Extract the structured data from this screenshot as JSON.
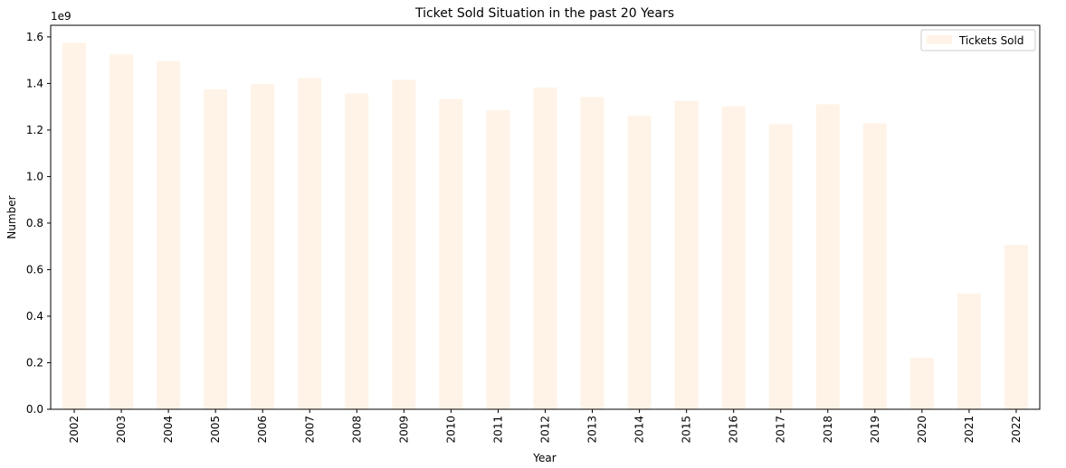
{
  "chart_data": {
    "type": "bar",
    "title": "Ticket Sold Situation in the past 20 Years",
    "xlabel": "Year",
    "ylabel": "Number",
    "y_offset_label": "1e9",
    "y_scale_factor": 1000000000,
    "ylim": [
      0,
      1.65
    ],
    "yticks": [
      "0.0",
      "0.2",
      "0.4",
      "0.6",
      "0.8",
      "1.0",
      "1.2",
      "1.4",
      "1.6"
    ],
    "ytick_values": [
      0,
      0.2,
      0.4,
      0.6,
      0.8,
      1.0,
      1.2,
      1.4,
      1.6
    ],
    "grid": false,
    "legend_position": "top-right",
    "categories": [
      "2002",
      "2003",
      "2004",
      "2005",
      "2006",
      "2007",
      "2008",
      "2009",
      "2010",
      "2011",
      "2012",
      "2013",
      "2014",
      "2015",
      "2016",
      "2017",
      "2018",
      "2019",
      "2020",
      "2021",
      "2022"
    ],
    "series": [
      {
        "name": "Tickets Sold",
        "color": "#fff3e8",
        "values": [
          1.575,
          1.525,
          1.497,
          1.375,
          1.398,
          1.424,
          1.357,
          1.416,
          1.333,
          1.285,
          1.383,
          1.342,
          1.262,
          1.325,
          1.302,
          1.225,
          1.311,
          1.229,
          0.221,
          0.497,
          0.707
        ]
      }
    ]
  }
}
